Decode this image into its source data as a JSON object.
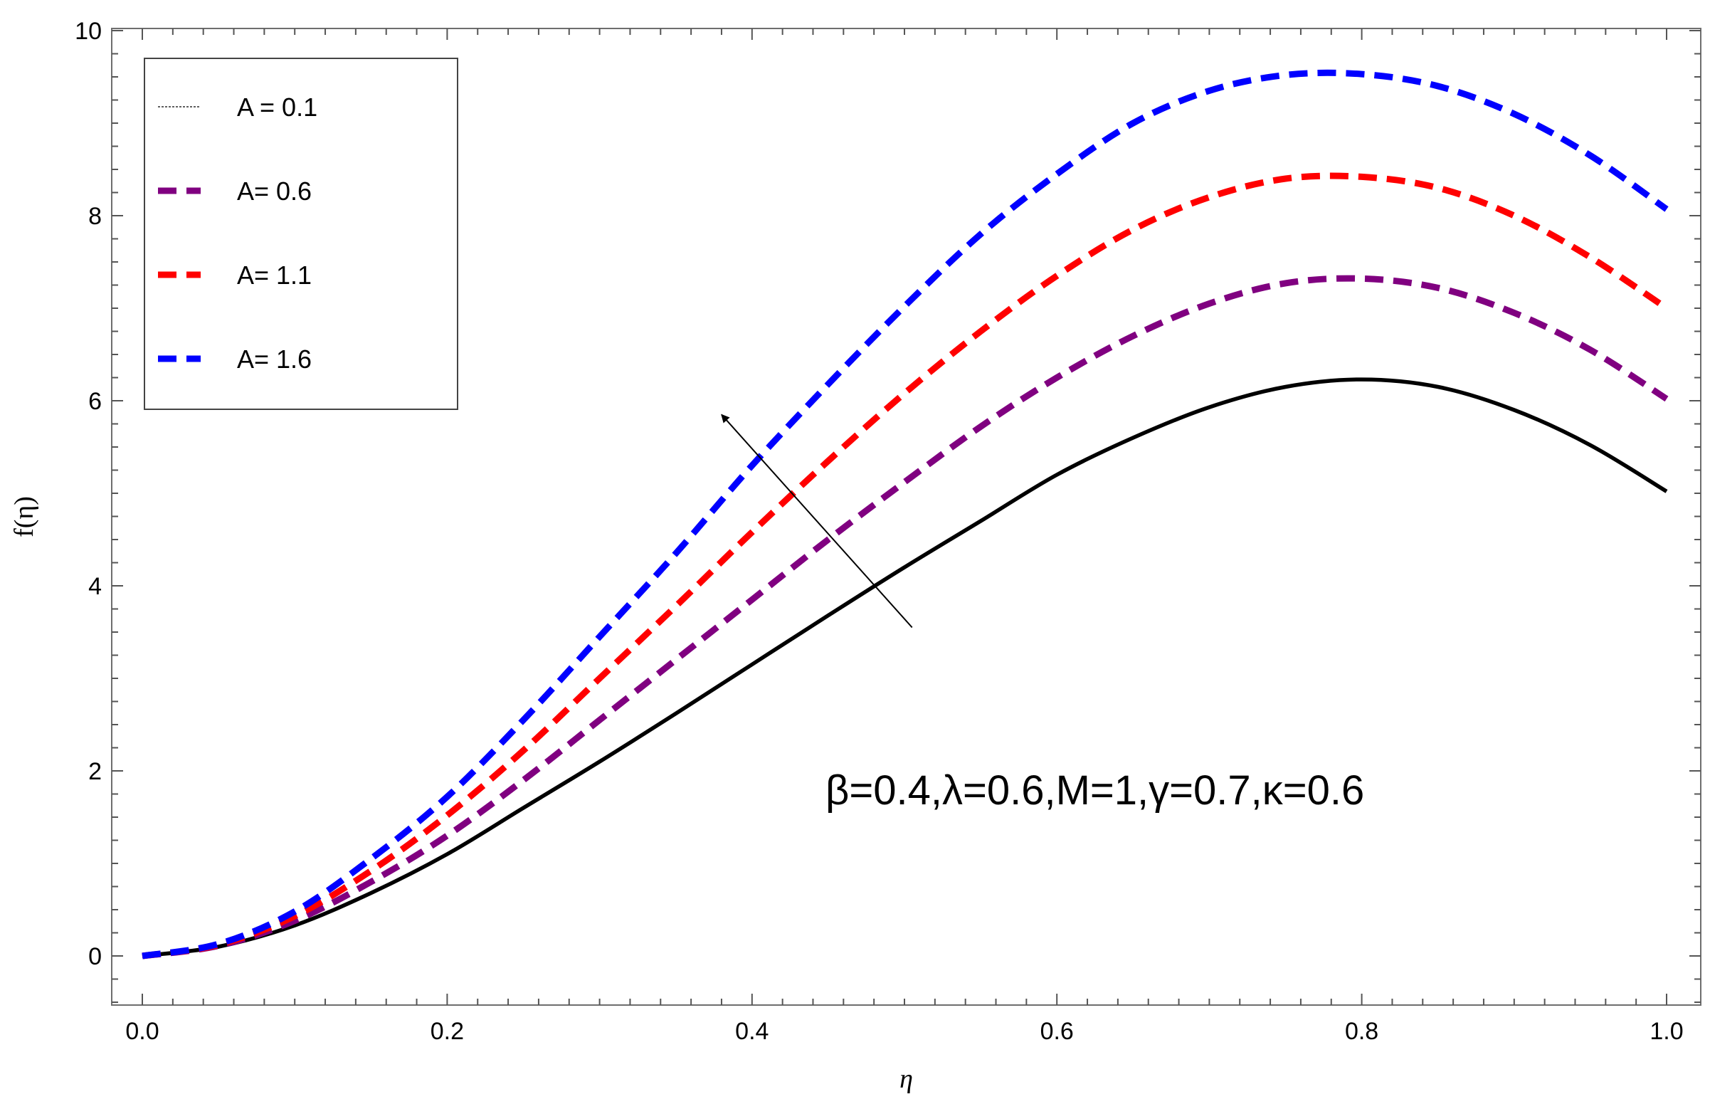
{
  "chart_data": {
    "type": "line",
    "xlabel": "η",
    "ylabel": "f(η)",
    "xlim": [
      0,
      1.0
    ],
    "ylim": [
      -0.5,
      10
    ],
    "x_ticks": [
      0.0,
      0.2,
      0.4,
      0.6,
      0.8,
      1.0
    ],
    "x_tick_labels": [
      "0.0",
      "0.2",
      "0.4",
      "0.6",
      "0.8",
      "1.0"
    ],
    "y_ticks": [
      0,
      2,
      4,
      6,
      8,
      10
    ],
    "y_tick_labels": [
      "0",
      "2",
      "4",
      "6",
      "8",
      "10"
    ],
    "grid": false,
    "legend_position": "top-left",
    "x": [
      0.0,
      0.05,
      0.1,
      0.15,
      0.2,
      0.25,
      0.3,
      0.35,
      0.4,
      0.45,
      0.5,
      0.55,
      0.6,
      0.65,
      0.7,
      0.75,
      0.8,
      0.85,
      0.9,
      0.95,
      1.0
    ],
    "series": [
      {
        "name": "A = 0.1",
        "color": "#000000",
        "dash": "solid",
        "values": [
          0.0,
          0.1,
          0.33,
          0.68,
          1.1,
          1.6,
          2.1,
          2.62,
          3.15,
          3.68,
          4.2,
          4.7,
          5.2,
          5.6,
          5.93,
          6.15,
          6.23,
          6.15,
          5.9,
          5.52,
          5.02
        ]
      },
      {
        "name": "A= 0.6",
        "color": "#800080",
        "dash": "dashed",
        "values": [
          0.0,
          0.11,
          0.38,
          0.8,
          1.3,
          1.9,
          2.55,
          3.2,
          3.85,
          4.5,
          5.12,
          5.72,
          6.25,
          6.7,
          7.05,
          7.27,
          7.32,
          7.22,
          6.95,
          6.55,
          6.02
        ]
      },
      {
        "name": "A= 1.1",
        "color": "#ff0000",
        "dash": "dashed",
        "values": [
          0.0,
          0.12,
          0.43,
          0.92,
          1.52,
          2.22,
          3.0,
          3.78,
          4.58,
          5.35,
          6.08,
          6.75,
          7.35,
          7.85,
          8.2,
          8.4,
          8.42,
          8.3,
          8.0,
          7.55,
          7.0
        ]
      },
      {
        "name": "A= 1.6",
        "color": "#0000ff",
        "dash": "dashed",
        "values": [
          0.0,
          0.13,
          0.48,
          1.05,
          1.72,
          2.55,
          3.45,
          4.35,
          5.3,
          6.18,
          7.02,
          7.8,
          8.45,
          9.0,
          9.35,
          9.52,
          9.53,
          9.4,
          9.1,
          8.65,
          8.07
        ]
      }
    ],
    "annotations": {
      "params_text": "β=0.4,λ=0.6,M=1,γ=0.7,κ=0.6",
      "arrow": {
        "from": [
          0.505,
          3.55
        ],
        "to": [
          0.38,
          5.85
        ]
      }
    }
  }
}
